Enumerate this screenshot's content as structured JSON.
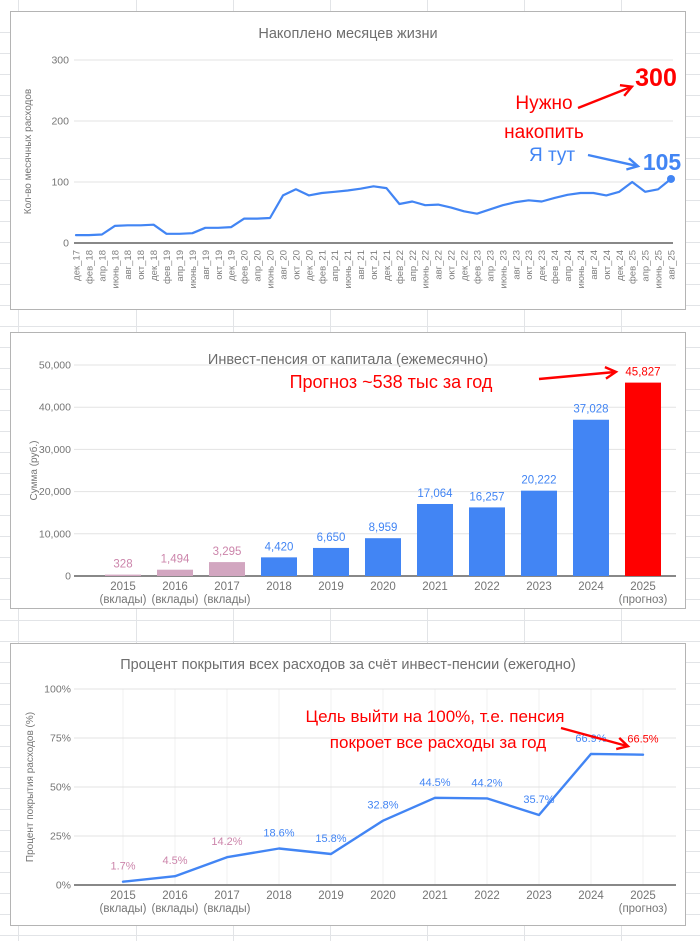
{
  "colors": {
    "blue": "#4285f4",
    "red": "#ff0000",
    "pink_bar": "#d2a6c0",
    "pink_label": "#cc85ab",
    "grid": "#e3e3e3",
    "grid_faint": "#f0f0f0",
    "baseline": "#888888",
    "axis_text": "#757575",
    "title_text": "#6e6e6e"
  },
  "chart_data": [
    {
      "type": "line",
      "title": "Накоплено месяцев жизни",
      "ylabel": "Кол-во месячных расходов",
      "ylim": [
        0,
        300
      ],
      "y_tick_values": [
        0,
        100,
        200,
        300
      ],
      "y_tick_labels": [
        "0",
        "100",
        "200",
        "300"
      ],
      "grid": "horizontal",
      "categories": [
        "дек_17",
        "фев_18",
        "апр_18",
        "июнь_18",
        "авг_18",
        "окт_18",
        "дек_18",
        "фев_19",
        "апр_19",
        "июнь_19",
        "авг_19",
        "окт_19",
        "дек_19",
        "фев_20",
        "апр_20",
        "июнь_20",
        "авг_20",
        "окт_20",
        "дек_20",
        "фев_21",
        "апр_21",
        "июнь_21",
        "авг_21",
        "окт_21",
        "дек_21",
        "фев_22",
        "апр_22",
        "июнь_22",
        "авг_22",
        "окт_22",
        "дек_22",
        "фев_23",
        "апр_23",
        "июнь_23",
        "авг_23",
        "окт_23",
        "дек_23",
        "фев_24",
        "апр_24",
        "июнь_24",
        "авг_24",
        "окт_24",
        "дек_24",
        "фев_25",
        "апр_25",
        "июнь_25",
        "авг_25"
      ],
      "values": [
        13,
        13,
        14,
        28,
        29,
        29,
        30,
        15,
        15,
        16,
        25,
        25,
        26,
        40,
        40,
        41,
        78,
        88,
        78,
        82,
        84,
        86,
        89,
        93,
        90,
        64,
        68,
        62,
        63,
        58,
        52,
        48,
        55,
        62,
        67,
        70,
        68,
        74,
        79,
        82,
        82,
        78,
        84,
        100,
        84,
        88,
        105
      ],
      "series_color": "#4285f4",
      "end_point_marker": true,
      "annotations": {
        "goal_line1": "Нужно",
        "goal_line2": "накопить",
        "goal_value": "300",
        "current_label": "Я тут",
        "current_value": "105"
      }
    },
    {
      "type": "bar",
      "title": "Инвест-пенсия от капитала (ежемесячно)",
      "ylabel": "Сумма (руб.)",
      "ylim": [
        0,
        50000
      ],
      "y_tick_values": [
        0,
        10000,
        20000,
        30000,
        40000,
        50000
      ],
      "y_tick_labels": [
        "0",
        "10,000",
        "20,000",
        "30,000",
        "40,000",
        "50,000"
      ],
      "grid": "horizontal",
      "categories": [
        [
          "2015",
          "(вклады)"
        ],
        [
          "2016",
          "(вклады)"
        ],
        [
          "2017",
          "(вклады)"
        ],
        [
          "2018"
        ],
        [
          "2019"
        ],
        [
          "2020"
        ],
        [
          "2021"
        ],
        [
          "2022"
        ],
        [
          "2023"
        ],
        [
          "2024"
        ],
        [
          "2025",
          "(прогноз)"
        ]
      ],
      "values": [
        328,
        1494,
        3295,
        4420,
        6650,
        8959,
        17064,
        16257,
        20222,
        37028,
        45827
      ],
      "value_labels": [
        "328",
        "1,494",
        "3,295",
        "4,420",
        "6,650",
        "8,959",
        "17,064",
        "16,257",
        "20,222",
        "37,028",
        "45,827"
      ],
      "bar_types": [
        "deposit",
        "deposit",
        "deposit",
        "invest",
        "invest",
        "invest",
        "invest",
        "invest",
        "invest",
        "invest",
        "forecast"
      ],
      "annotations": {
        "forecast_note": "Прогноз ~538 тыс за год"
      }
    },
    {
      "type": "line",
      "title": "Процент покрытия всех расходов за счёт инвест-пенсии (ежегодно)",
      "ylabel": "Процент покрытия расходов  (%)",
      "ylim": [
        0,
        100
      ],
      "y_tick_values": [
        0,
        25,
        50,
        75,
        100
      ],
      "y_tick_labels": [
        "0%",
        "25%",
        "50%",
        "75%",
        "100%"
      ],
      "grid": "horizontal+vertical-faint",
      "categories": [
        [
          "2015",
          "(вклады)"
        ],
        [
          "2016",
          "(вклады)"
        ],
        [
          "2017",
          "(вклады)"
        ],
        [
          "2018"
        ],
        [
          "2019"
        ],
        [
          "2020"
        ],
        [
          "2021"
        ],
        [
          "2022"
        ],
        [
          "2023"
        ],
        [
          "2024"
        ],
        [
          "2025",
          "(прогноз)"
        ]
      ],
      "values": [
        1.7,
        4.5,
        14.2,
        18.6,
        15.8,
        32.8,
        44.5,
        44.2,
        35.7,
        66.9,
        66.5
      ],
      "value_labels": [
        "1.7%",
        "4.5%",
        "14.2%",
        "18.6%",
        "15.8%",
        "32.8%",
        "44.5%",
        "44.2%",
        "35.7%",
        "66.9%",
        "66.5%"
      ],
      "label_types": [
        "deposit",
        "deposit",
        "deposit",
        "invest",
        "invest",
        "invest",
        "invest",
        "invest",
        "invest",
        "invest",
        "forecast"
      ],
      "series_color": "#4285f4",
      "annotations": {
        "goal_line1": "Цель выйти на 100%, т.е. пенсия",
        "goal_line2": "покроет все расходы за год"
      }
    }
  ]
}
